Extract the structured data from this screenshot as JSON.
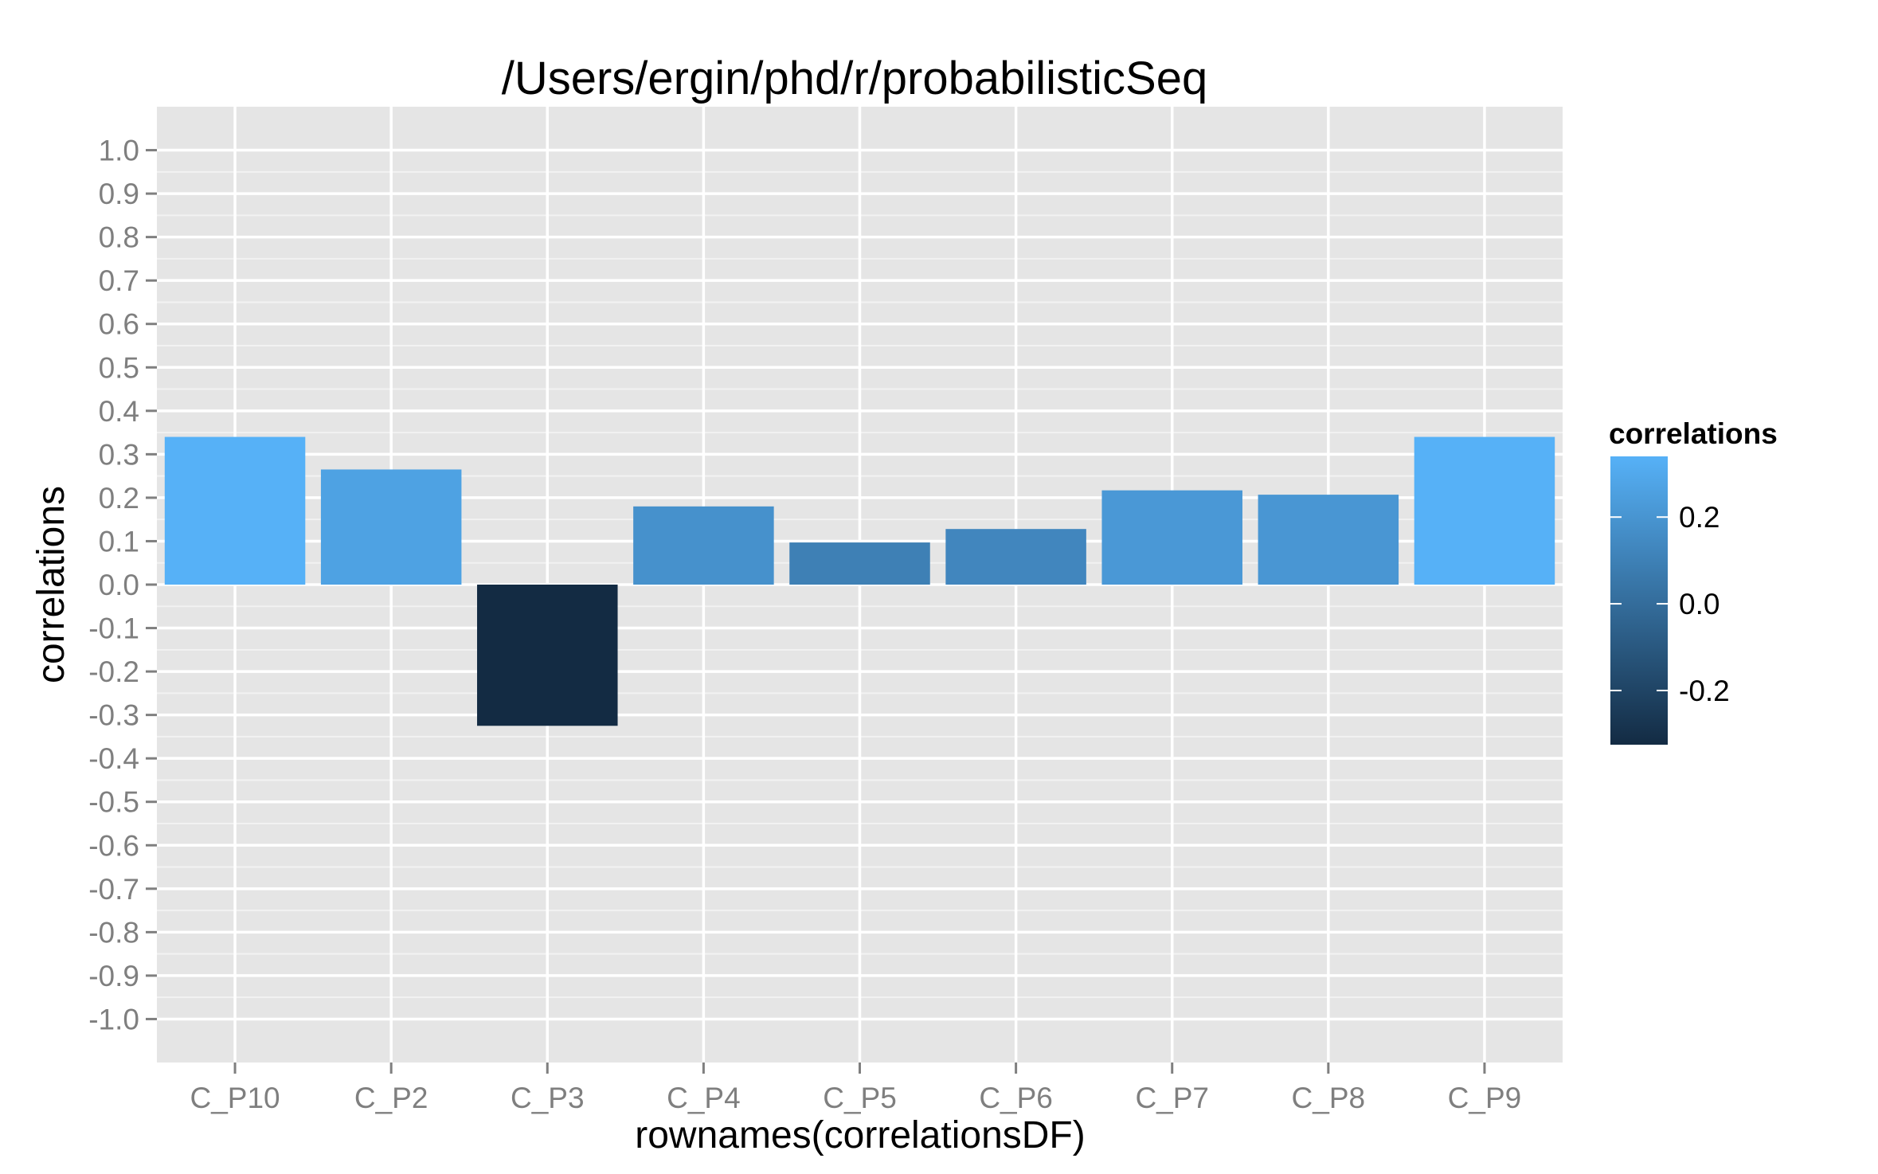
{
  "chart_data": {
    "type": "bar",
    "title": "/Users/ergin/phd/r/probabilisticSeq",
    "xlabel": "rownames(correlationsDF)",
    "ylabel": "correlations",
    "categories": [
      "C_P10",
      "C_P2",
      "C_P3",
      "C_P4",
      "C_P5",
      "C_P6",
      "C_P7",
      "C_P8",
      "C_P9"
    ],
    "values": [
      0.34,
      0.265,
      -0.325,
      0.18,
      0.097,
      0.128,
      0.217,
      0.207,
      0.34
    ],
    "ylim": [
      -1.1,
      1.1
    ],
    "yticks": [
      1.0,
      0.9,
      0.8,
      0.7,
      0.6,
      0.5,
      0.4,
      0.3,
      0.2,
      0.1,
      0.0,
      -0.1,
      -0.2,
      -0.3,
      -0.4,
      -0.5,
      -0.6,
      -0.7,
      -0.8,
      -0.9,
      -1.0
    ],
    "ytick_labels": [
      "1.0",
      "0.9",
      "0.8",
      "0.7",
      "0.6",
      "0.5",
      "0.4",
      "0.3",
      "0.2",
      "0.1",
      "0.0",
      "-0.1",
      "-0.2",
      "-0.3",
      "-0.4",
      "-0.5",
      "-0.6",
      "-0.7",
      "-0.8",
      "-0.9",
      "-1.0"
    ],
    "grid": true,
    "panel_background": "#e5e5e5",
    "grid_color": "#ffffff",
    "legend": {
      "title": "correlations",
      "position": "right",
      "range": [
        -0.325,
        0.34
      ],
      "ticks": [
        0.2,
        0.0,
        -0.2
      ],
      "tick_labels": [
        "0.2",
        "0.0",
        "-0.2"
      ],
      "color_low": "#132b43",
      "color_high": "#56b1f7"
    }
  }
}
